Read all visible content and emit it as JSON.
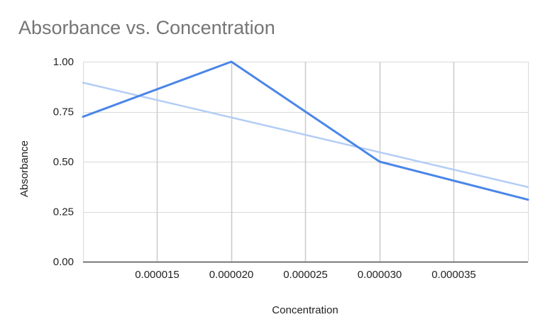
{
  "chart_data": {
    "type": "line",
    "title": "Absorbance vs. Concentration",
    "xlabel": "Concentration",
    "ylabel": "Absorbance",
    "xlim": [
      1e-05,
      4e-05
    ],
    "ylim": [
      0,
      1
    ],
    "x_ticks": [
      1.5e-05,
      2e-05,
      2.5e-05,
      3e-05,
      3.5e-05
    ],
    "x_tick_labels": [
      "0.000015",
      "0.000020",
      "0.000025",
      "0.000030",
      "0.000035"
    ],
    "y_ticks": [
      0,
      0.25,
      0.5,
      0.75,
      1
    ],
    "y_tick_labels": [
      "0.00",
      "0.25",
      "0.50",
      "0.75",
      "1.00"
    ],
    "grid": true,
    "series": [
      {
        "color": "#4a86e8",
        "x": [
          1e-05,
          2e-05,
          3e-05,
          4e-05
        ],
        "y": [
          0.725,
          1.0,
          0.5,
          0.31
        ]
      },
      {
        "type": "trendline",
        "color": "#b3cdf5",
        "x": [
          1e-05,
          4e-05
        ],
        "y": [
          0.895,
          0.373
        ]
      }
    ]
  }
}
